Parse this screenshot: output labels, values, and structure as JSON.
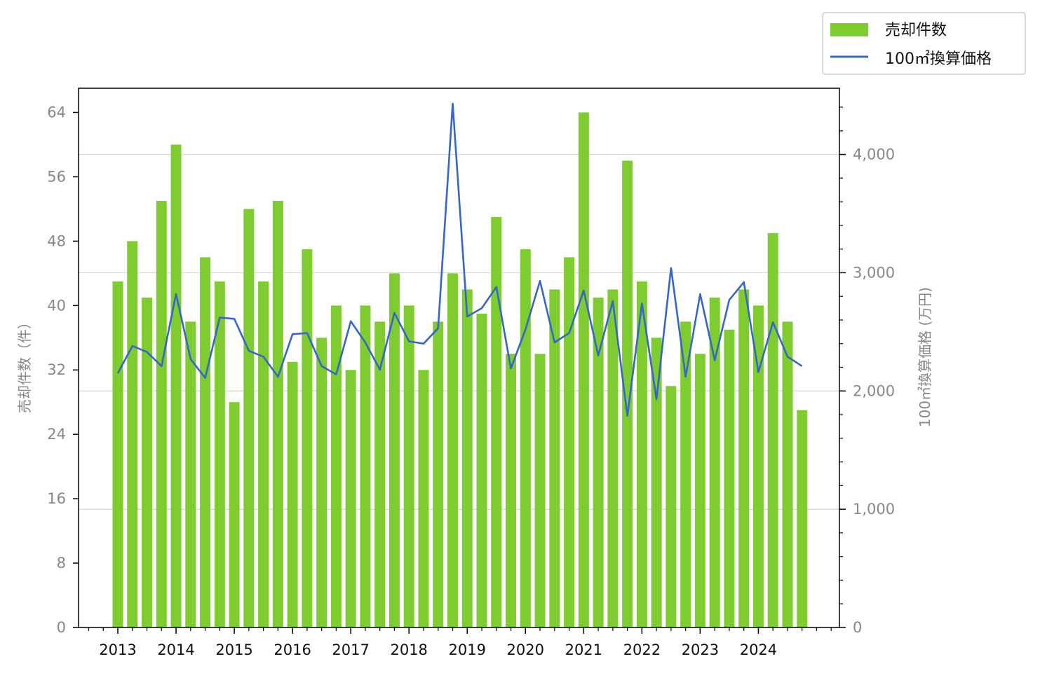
{
  "chart_data": {
    "type": "bar+line",
    "x_ticks": [
      "2013",
      "2014",
      "2015",
      "2016",
      "2017",
      "2018",
      "2019",
      "2020",
      "2021",
      "2022",
      "2023",
      "2024"
    ],
    "y_left": {
      "label": "売却件数（件）",
      "ticks": [
        "0",
        "8",
        "16",
        "24",
        "32",
        "40",
        "48",
        "56",
        "64"
      ],
      "range": [
        0,
        67
      ]
    },
    "y_right": {
      "label": "100㎡換算価格 (万円)",
      "ticks": [
        "0",
        "1,000",
        "2,000",
        "3,000",
        "4,000"
      ],
      "range": [
        0,
        4560
      ]
    },
    "gridlines": "right axis major ticks",
    "legend": {
      "position": "top-right, outside plot",
      "bar_label": "売却件数",
      "line_label": "100㎡換算価格"
    },
    "colors": {
      "bar": "#7fcc30",
      "line": "#3566c8"
    },
    "series": [
      {
        "name": "売却件数",
        "type": "bar",
        "values": [
          43,
          48,
          41,
          53,
          60,
          38,
          46,
          43,
          28,
          52,
          43,
          53,
          33,
          47,
          36,
          40,
          32,
          40,
          38,
          44,
          40,
          32,
          38,
          44,
          42,
          39,
          51,
          34,
          47,
          34,
          42,
          46,
          64,
          41,
          42,
          58,
          43,
          36,
          30,
          38,
          34,
          41,
          37,
          42,
          40,
          49,
          38,
          27
        ]
      },
      {
        "name": "100㎡換算価格",
        "type": "line",
        "values": [
          2150,
          2380,
          2330,
          2210,
          2820,
          2270,
          2110,
          2620,
          2610,
          2340,
          2290,
          2120,
          2480,
          2490,
          2210,
          2140,
          2590,
          2410,
          2180,
          2660,
          2420,
          2400,
          2530,
          4430,
          2630,
          2700,
          2880,
          2190,
          2520,
          2930,
          2410,
          2490,
          2850,
          2300,
          2760,
          1790,
          2740,
          1930,
          3040,
          2120,
          2820,
          2260,
          2770,
          2920,
          2160,
          2580,
          2290,
          2210
        ]
      }
    ]
  }
}
